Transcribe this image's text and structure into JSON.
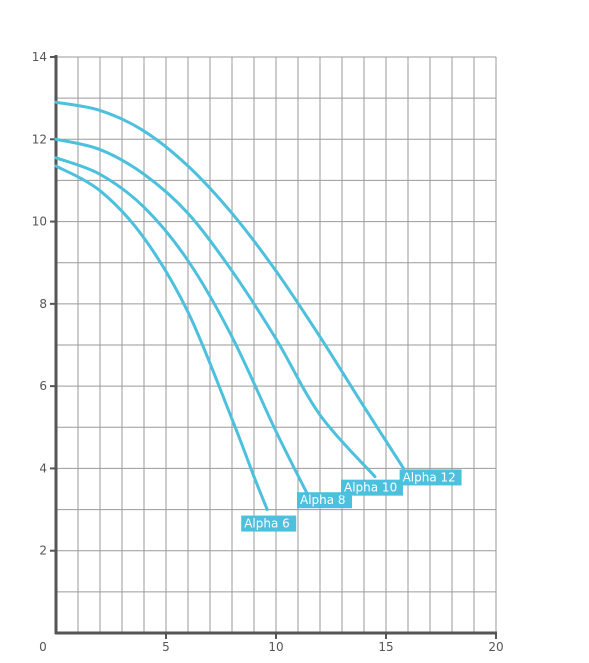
{
  "chart_data": {
    "type": "line",
    "title": "",
    "xlabel": "",
    "ylabel": "",
    "xlim": [
      0,
      20
    ],
    "ylim": [
      0,
      14
    ],
    "xticks": [
      0,
      5,
      10,
      15,
      20
    ],
    "yticks": [
      2,
      4,
      6,
      8,
      10,
      12,
      14
    ],
    "grid": true,
    "grid_minor_x_step": 1,
    "grid_minor_y_step": 1,
    "colors": {
      "curve": "#4cc0dc",
      "label_bg": "#4cc0dc",
      "label_text": "#ffffff",
      "grid": "#9a9a9a",
      "axis": "#555555"
    },
    "series": [
      {
        "name": "Alpha 6",
        "x": [
          0,
          2,
          4,
          6,
          8,
          9,
          9.6
        ],
        "y": [
          11.35,
          10.75,
          9.6,
          7.8,
          5.2,
          3.8,
          3.0
        ]
      },
      {
        "name": "Alpha 8",
        "x": [
          0,
          2,
          4,
          6,
          8,
          10,
          11.5
        ],
        "y": [
          11.55,
          11.15,
          10.35,
          9.05,
          7.2,
          4.9,
          3.3
        ]
      },
      {
        "name": "Alpha 10",
        "x": [
          0,
          2,
          4,
          6,
          8,
          10,
          12,
          14.5
        ],
        "y": [
          12.0,
          11.75,
          11.15,
          10.2,
          8.8,
          7.15,
          5.3,
          3.8
        ]
      },
      {
        "name": "Alpha 12",
        "x": [
          0,
          2,
          4,
          6,
          8,
          10,
          12,
          14,
          15.8
        ],
        "y": [
          12.9,
          12.7,
          12.2,
          11.35,
          10.2,
          8.8,
          7.2,
          5.5,
          4.0
        ]
      }
    ]
  }
}
